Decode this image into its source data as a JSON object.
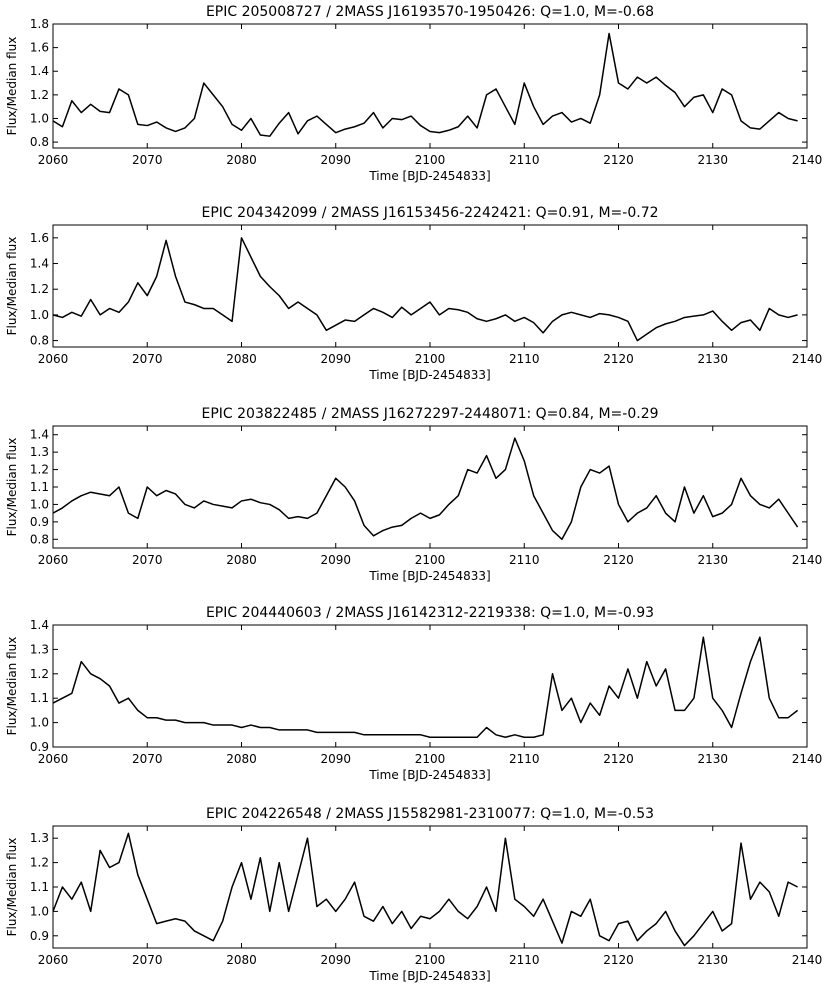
{
  "chart_data": [
    {
      "type": "line",
      "title": "EPIC 205008727 / 2MASS J16193570-1950426: Q=1.0, M=-0.68",
      "xlabel": "Time [BJD-2454833]",
      "ylabel": "Flux/Median flux",
      "xlim": [
        2060,
        2140
      ],
      "ylim": [
        0.75,
        1.8
      ],
      "xticks": [
        "2060",
        "2070",
        "2080",
        "2090",
        "2100",
        "2110",
        "2120",
        "2130",
        "2140"
      ],
      "yticks": [
        "0.8",
        "1.0",
        "1.2",
        "1.4",
        "1.6",
        "1.8"
      ],
      "series": [
        {
          "color": "#000000",
          "x": [
            2060,
            2061,
            2062,
            2063,
            2064,
            2065,
            2066,
            2067,
            2068,
            2069,
            2070,
            2071,
            2072,
            2073,
            2074,
            2075,
            2076,
            2077,
            2078,
            2079,
            2080,
            2081,
            2082,
            2083,
            2084,
            2085,
            2086,
            2087,
            2088,
            2089,
            2090,
            2091,
            2092,
            2093,
            2094,
            2095,
            2096,
            2097,
            2098,
            2099,
            2100,
            2101,
            2102,
            2103,
            2104,
            2105,
            2106,
            2107,
            2108,
            2109,
            2110,
            2111,
            2112,
            2113,
            2114,
            2115,
            2116,
            2117,
            2118,
            2119,
            2120,
            2121,
            2122,
            2123,
            2124,
            2125,
            2126,
            2127,
            2128,
            2129,
            2130,
            2131,
            2132,
            2133,
            2134,
            2135,
            2136,
            2137,
            2138,
            2139
          ],
          "y": [
            0.98,
            0.93,
            1.15,
            1.05,
            1.12,
            1.06,
            1.05,
            1.25,
            1.2,
            0.95,
            0.94,
            0.97,
            0.92,
            0.89,
            0.92,
            1.0,
            1.3,
            1.2,
            1.1,
            0.95,
            0.9,
            1.0,
            0.86,
            0.85,
            0.96,
            1.05,
            0.87,
            0.98,
            1.02,
            0.95,
            0.88,
            0.91,
            0.93,
            0.96,
            1.05,
            0.92,
            1.0,
            0.99,
            1.02,
            0.94,
            0.89,
            0.88,
            0.9,
            0.93,
            1.02,
            0.92,
            1.2,
            1.25,
            1.1,
            0.95,
            1.3,
            1.1,
            0.95,
            1.02,
            1.05,
            0.97,
            1.0,
            0.96,
            1.2,
            1.72,
            1.3,
            1.25,
            1.35,
            1.3,
            1.35,
            1.28,
            1.22,
            1.1,
            1.18,
            1.2,
            1.05,
            1.25,
            1.2,
            0.98,
            0.92,
            0.91,
            0.98,
            1.05,
            1.0,
            0.98
          ]
        }
      ]
    },
    {
      "type": "line",
      "title": "EPIC 204342099 / 2MASS J16153456-2242421: Q=0.91, M=-0.72",
      "xlabel": "Time [BJD-2454833]",
      "ylabel": "Flux/Median flux",
      "xlim": [
        2060,
        2140
      ],
      "ylim": [
        0.75,
        1.7
      ],
      "xticks": [
        "2060",
        "2070",
        "2080",
        "2090",
        "2100",
        "2110",
        "2120",
        "2130",
        "2140"
      ],
      "yticks": [
        "0.8",
        "1.0",
        "1.2",
        "1.4",
        "1.6"
      ],
      "series": [
        {
          "color": "#000000",
          "x": [
            2060,
            2061,
            2062,
            2063,
            2064,
            2065,
            2066,
            2067,
            2068,
            2069,
            2070,
            2071,
            2072,
            2073,
            2074,
            2075,
            2076,
            2077,
            2078,
            2079,
            2080,
            2081,
            2082,
            2083,
            2084,
            2085,
            2086,
            2087,
            2088,
            2089,
            2090,
            2091,
            2092,
            2093,
            2094,
            2095,
            2096,
            2097,
            2098,
            2099,
            2100,
            2101,
            2102,
            2103,
            2104,
            2105,
            2106,
            2107,
            2108,
            2109,
            2110,
            2111,
            2112,
            2113,
            2114,
            2115,
            2116,
            2117,
            2118,
            2119,
            2120,
            2121,
            2122,
            2123,
            2124,
            2125,
            2126,
            2127,
            2128,
            2129,
            2130,
            2131,
            2132,
            2133,
            2134,
            2135,
            2136,
            2137,
            2138,
            2139
          ],
          "y": [
            1.0,
            0.98,
            1.02,
            0.99,
            1.12,
            1.0,
            1.05,
            1.02,
            1.1,
            1.25,
            1.15,
            1.3,
            1.58,
            1.3,
            1.1,
            1.08,
            1.05,
            1.05,
            1.0,
            0.95,
            1.6,
            1.45,
            1.3,
            1.22,
            1.15,
            1.05,
            1.1,
            1.05,
            1.0,
            0.88,
            0.92,
            0.96,
            0.95,
            1.0,
            1.05,
            1.02,
            0.98,
            1.06,
            1.0,
            1.05,
            1.1,
            1.0,
            1.05,
            1.04,
            1.02,
            0.97,
            0.95,
            0.97,
            1.0,
            0.95,
            0.98,
            0.94,
            0.86,
            0.95,
            1.0,
            1.02,
            1.0,
            0.98,
            1.01,
            1.0,
            0.98,
            0.95,
            0.8,
            0.85,
            0.9,
            0.93,
            0.95,
            0.98,
            0.99,
            1.0,
            1.03,
            0.95,
            0.88,
            0.94,
            0.96,
            0.88,
            1.05,
            1.0,
            0.98,
            1.0
          ]
        }
      ]
    },
    {
      "type": "line",
      "title": "EPIC 203822485 / 2MASS J16272297-2448071: Q=0.84, M=-0.29",
      "xlabel": "Time [BJD-2454833]",
      "ylabel": "Flux/Median flux",
      "xlim": [
        2060,
        2140
      ],
      "ylim": [
        0.75,
        1.45
      ],
      "xticks": [
        "2060",
        "2070",
        "2080",
        "2090",
        "2100",
        "2110",
        "2120",
        "2130",
        "2140"
      ],
      "yticks": [
        "0.8",
        "0.9",
        "1.0",
        "1.1",
        "1.2",
        "1.3",
        "1.4"
      ],
      "series": [
        {
          "color": "#000000",
          "x": [
            2060,
            2061,
            2062,
            2063,
            2064,
            2065,
            2066,
            2067,
            2068,
            2069,
            2070,
            2071,
            2072,
            2073,
            2074,
            2075,
            2076,
            2077,
            2078,
            2079,
            2080,
            2081,
            2082,
            2083,
            2084,
            2085,
            2086,
            2087,
            2088,
            2089,
            2090,
            2091,
            2092,
            2093,
            2094,
            2095,
            2096,
            2097,
            2098,
            2099,
            2100,
            2101,
            2102,
            2103,
            2104,
            2105,
            2106,
            2107,
            2108,
            2109,
            2110,
            2111,
            2112,
            2113,
            2114,
            2115,
            2116,
            2117,
            2118,
            2119,
            2120,
            2121,
            2122,
            2123,
            2124,
            2125,
            2126,
            2127,
            2128,
            2129,
            2130,
            2131,
            2132,
            2133,
            2134,
            2135,
            2136,
            2137,
            2138,
            2139
          ],
          "y": [
            0.95,
            0.98,
            1.02,
            1.05,
            1.07,
            1.06,
            1.05,
            1.1,
            0.95,
            0.92,
            1.1,
            1.05,
            1.08,
            1.06,
            1.0,
            0.98,
            1.02,
            1.0,
            0.99,
            0.98,
            1.02,
            1.03,
            1.01,
            1.0,
            0.97,
            0.92,
            0.93,
            0.92,
            0.95,
            1.05,
            1.15,
            1.1,
            1.02,
            0.88,
            0.82,
            0.85,
            0.87,
            0.88,
            0.92,
            0.95,
            0.92,
            0.94,
            1.0,
            1.05,
            1.2,
            1.18,
            1.28,
            1.15,
            1.2,
            1.38,
            1.25,
            1.05,
            0.95,
            0.85,
            0.8,
            0.9,
            1.1,
            1.2,
            1.18,
            1.22,
            1.0,
            0.9,
            0.95,
            0.98,
            1.05,
            0.95,
            0.9,
            1.1,
            0.95,
            1.05,
            0.93,
            0.95,
            1.0,
            1.15,
            1.05,
            1.0,
            0.98,
            1.03,
            0.95,
            0.87
          ]
        }
      ]
    },
    {
      "type": "line",
      "title": "EPIC 204440603 / 2MASS J16142312-2219338: Q=1.0, M=-0.93",
      "xlabel": "Time [BJD-2454833]",
      "ylabel": "Flux/Median flux",
      "xlim": [
        2060,
        2140
      ],
      "ylim": [
        0.9,
        1.4
      ],
      "xticks": [
        "2060",
        "2070",
        "2080",
        "2090",
        "2100",
        "2110",
        "2120",
        "2130",
        "2140"
      ],
      "yticks": [
        "0.9",
        "1.0",
        "1.1",
        "1.2",
        "1.3",
        "1.4"
      ],
      "series": [
        {
          "color": "#000000",
          "x": [
            2060,
            2061,
            2062,
            2063,
            2064,
            2065,
            2066,
            2067,
            2068,
            2069,
            2070,
            2071,
            2072,
            2073,
            2074,
            2075,
            2076,
            2077,
            2078,
            2079,
            2080,
            2081,
            2082,
            2083,
            2084,
            2085,
            2086,
            2087,
            2088,
            2089,
            2090,
            2091,
            2092,
            2093,
            2094,
            2095,
            2096,
            2097,
            2098,
            2099,
            2100,
            2101,
            2102,
            2103,
            2104,
            2105,
            2106,
            2107,
            2108,
            2109,
            2110,
            2111,
            2112,
            2113,
            2114,
            2115,
            2116,
            2117,
            2118,
            2119,
            2120,
            2121,
            2122,
            2123,
            2124,
            2125,
            2126,
            2127,
            2128,
            2129,
            2130,
            2131,
            2132,
            2133,
            2134,
            2135,
            2136,
            2137,
            2138,
            2139
          ],
          "y": [
            1.08,
            1.1,
            1.12,
            1.25,
            1.2,
            1.18,
            1.15,
            1.08,
            1.1,
            1.05,
            1.02,
            1.02,
            1.01,
            1.01,
            1.0,
            1.0,
            1.0,
            0.99,
            0.99,
            0.99,
            0.98,
            0.99,
            0.98,
            0.98,
            0.97,
            0.97,
            0.97,
            0.97,
            0.96,
            0.96,
            0.96,
            0.96,
            0.96,
            0.95,
            0.95,
            0.95,
            0.95,
            0.95,
            0.95,
            0.95,
            0.94,
            0.94,
            0.94,
            0.94,
            0.94,
            0.94,
            0.98,
            0.95,
            0.94,
            0.95,
            0.94,
            0.94,
            0.95,
            1.2,
            1.05,
            1.1,
            1.0,
            1.08,
            1.03,
            1.15,
            1.1,
            1.22,
            1.1,
            1.25,
            1.15,
            1.22,
            1.05,
            1.05,
            1.1,
            1.35,
            1.1,
            1.05,
            0.98,
            1.12,
            1.25,
            1.35,
            1.1,
            1.02,
            1.02,
            1.05
          ]
        }
      ]
    },
    {
      "type": "line",
      "title": "EPIC 204226548 / 2MASS J15582981-2310077: Q=1.0, M=-0.53",
      "xlabel": "Time [BJD-2454833]",
      "ylabel": "Flux/Median flux",
      "xlim": [
        2060,
        2140
      ],
      "ylim": [
        0.85,
        1.35
      ],
      "xticks": [
        "2060",
        "2070",
        "2080",
        "2090",
        "2100",
        "2110",
        "2120",
        "2130",
        "2140"
      ],
      "yticks": [
        "0.9",
        "1.0",
        "1.1",
        "1.2",
        "1.3"
      ],
      "series": [
        {
          "color": "#000000",
          "x": [
            2060,
            2061,
            2062,
            2063,
            2064,
            2065,
            2066,
            2067,
            2068,
            2069,
            2070,
            2071,
            2072,
            2073,
            2074,
            2075,
            2076,
            2077,
            2078,
            2079,
            2080,
            2081,
            2082,
            2083,
            2084,
            2085,
            2086,
            2087,
            2088,
            2089,
            2090,
            2091,
            2092,
            2093,
            2094,
            2095,
            2096,
            2097,
            2098,
            2099,
            2100,
            2101,
            2102,
            2103,
            2104,
            2105,
            2106,
            2107,
            2108,
            2109,
            2110,
            2111,
            2112,
            2113,
            2114,
            2115,
            2116,
            2117,
            2118,
            2119,
            2120,
            2121,
            2122,
            2123,
            2124,
            2125,
            2126,
            2127,
            2128,
            2129,
            2130,
            2131,
            2132,
            2133,
            2134,
            2135,
            2136,
            2137,
            2138,
            2139
          ],
          "y": [
            1.0,
            1.1,
            1.05,
            1.12,
            1.0,
            1.25,
            1.18,
            1.2,
            1.32,
            1.15,
            1.05,
            0.95,
            0.96,
            0.97,
            0.96,
            0.92,
            0.9,
            0.88,
            0.96,
            1.1,
            1.2,
            1.05,
            1.22,
            1.0,
            1.2,
            1.0,
            1.15,
            1.3,
            1.02,
            1.05,
            1.0,
            1.05,
            1.12,
            0.98,
            0.96,
            1.02,
            0.95,
            1.0,
            0.93,
            0.98,
            0.97,
            1.0,
            1.05,
            1.0,
            0.97,
            1.02,
            1.1,
            1.0,
            1.3,
            1.05,
            1.02,
            0.98,
            1.05,
            0.96,
            0.87,
            1.0,
            0.98,
            1.05,
            0.9,
            0.88,
            0.95,
            0.96,
            0.88,
            0.92,
            0.95,
            1.0,
            0.92,
            0.86,
            0.9,
            0.95,
            1.0,
            0.92,
            0.95,
            1.28,
            1.05,
            1.12,
            1.08,
            0.98,
            1.12,
            1.1
          ]
        }
      ]
    }
  ]
}
